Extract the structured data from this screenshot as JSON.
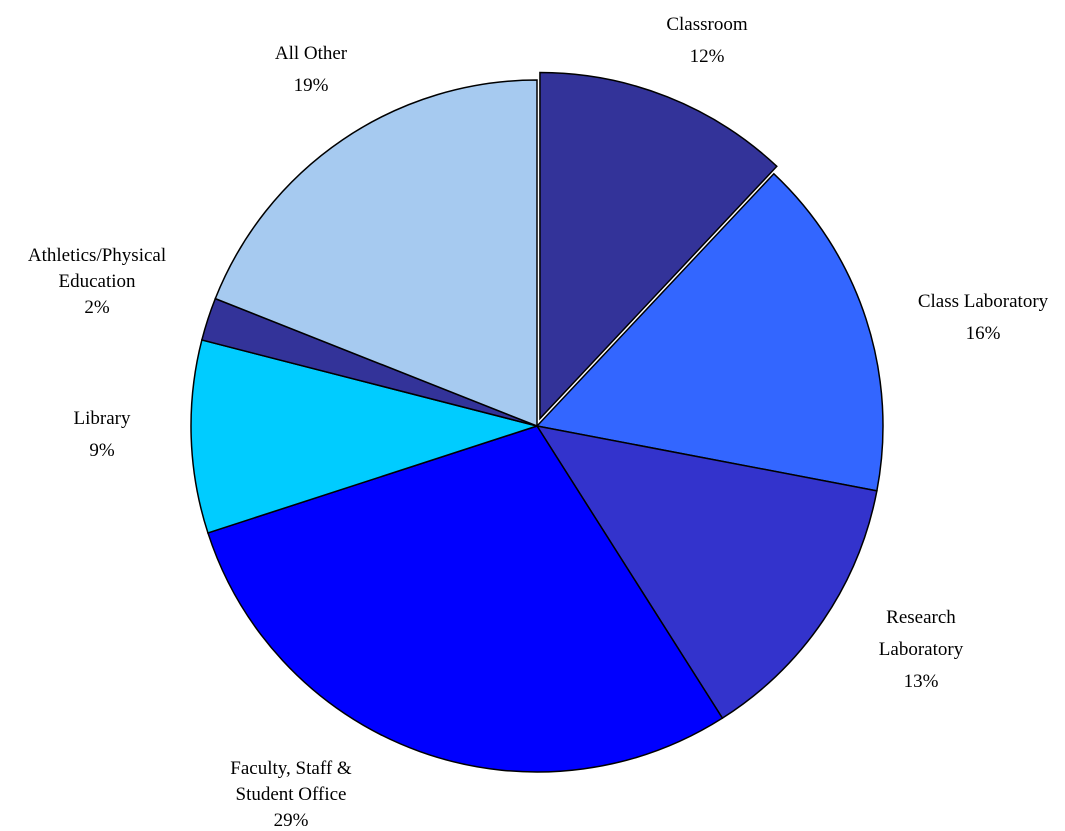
{
  "chart_data": {
    "type": "pie",
    "title": "",
    "slices": [
      {
        "label_lines": [
          "Classroom"
        ],
        "value_label": "12%",
        "value": 12,
        "color": "#333399",
        "exploded": true
      },
      {
        "label_lines": [
          "Class Laboratory"
        ],
        "value_label": "16%",
        "value": 16,
        "color": "#3366ff",
        "exploded": false
      },
      {
        "label_lines": [
          "Research",
          "Laboratory"
        ],
        "value_label": "13%",
        "value": 13,
        "color": "#3333cc",
        "exploded": false
      },
      {
        "label_lines": [
          "Faculty, Staff &",
          "Student Office"
        ],
        "value_label": "29%",
        "value": 29,
        "color": "#0000ff",
        "exploded": false
      },
      {
        "label_lines": [
          "Library"
        ],
        "value_label": "9%",
        "value": 9,
        "color": "#00ccff",
        "exploded": false
      },
      {
        "label_lines": [
          "Athletics/Physical",
          "Education"
        ],
        "value_label": "2%",
        "value": 2,
        "color": "#333399",
        "exploded": false
      },
      {
        "label_lines": [
          "All Other"
        ],
        "value_label": "19%",
        "value": 19,
        "color": "#a6caf0",
        "exploded": false
      }
    ]
  }
}
